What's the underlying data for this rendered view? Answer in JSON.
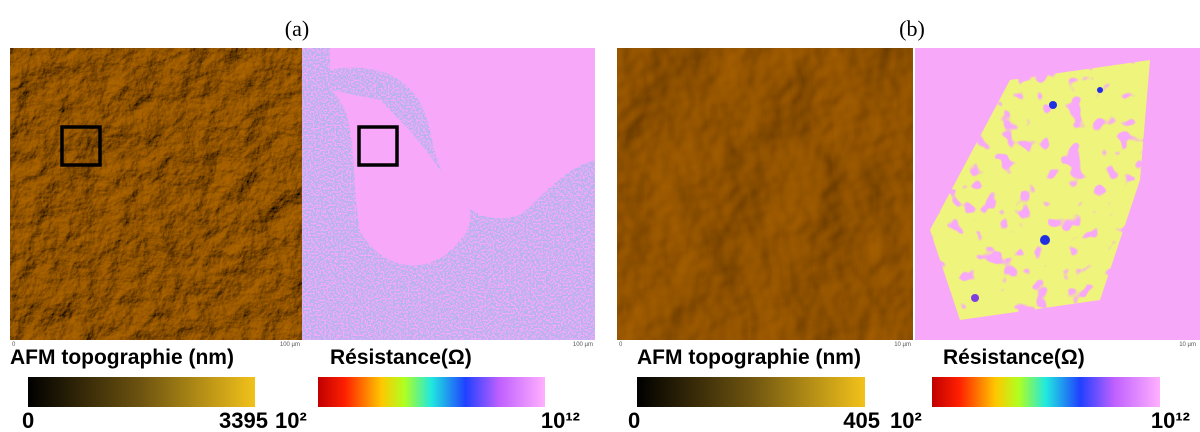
{
  "panels": [
    {
      "label": "(a)",
      "topography": {
        "title": "AFM topographie (nm)",
        "min": "0",
        "max": "3395",
        "scale_start": "0",
        "scale_end": "100 µm"
      },
      "resistance": {
        "title": "Résistance(Ω)",
        "min": "10²",
        "max": "10¹²",
        "scale_end": "100 µm"
      }
    },
    {
      "label": "(b)",
      "topography": {
        "title": "AFM topographie (nm)",
        "min": "0",
        "max": "405",
        "scale_start": "0",
        "scale_end": "10 µm"
      },
      "resistance": {
        "title": "Résistance(Ω)",
        "min": "10²",
        "max": "10¹²",
        "scale_end": "10 µm"
      }
    }
  ]
}
